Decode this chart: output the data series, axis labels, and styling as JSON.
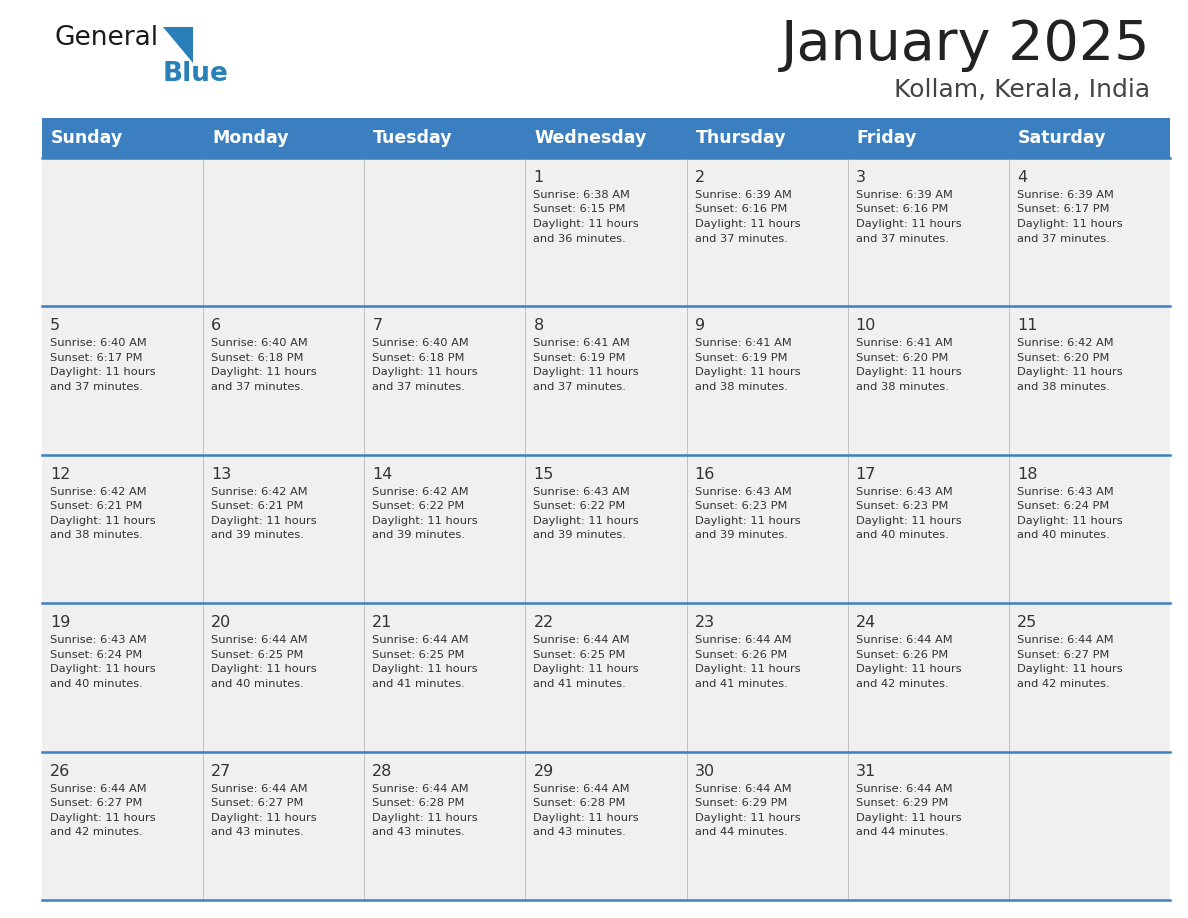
{
  "title": "January 2025",
  "subtitle": "Kollam, Kerala, India",
  "header_bg": "#3c7fc0",
  "header_text_color": "#ffffff",
  "days_of_week": [
    "Sunday",
    "Monday",
    "Tuesday",
    "Wednesday",
    "Thursday",
    "Friday",
    "Saturday"
  ],
  "row_bg": "#f0f0f0",
  "row_line_color": "#3c7fc0",
  "cell_text_color": "#333333",
  "title_color": "#222222",
  "subtitle_color": "#444444",
  "calendar_data": [
    [
      {
        "day": "",
        "sunrise": "",
        "sunset": "",
        "daylight_h": "",
        "daylight_m": ""
      },
      {
        "day": "",
        "sunrise": "",
        "sunset": "",
        "daylight_h": "",
        "daylight_m": ""
      },
      {
        "day": "",
        "sunrise": "",
        "sunset": "",
        "daylight_h": "",
        "daylight_m": ""
      },
      {
        "day": "1",
        "sunrise": "6:38 AM",
        "sunset": "6:15 PM",
        "daylight_h": "11",
        "daylight_m": "36"
      },
      {
        "day": "2",
        "sunrise": "6:39 AM",
        "sunset": "6:16 PM",
        "daylight_h": "11",
        "daylight_m": "37"
      },
      {
        "day": "3",
        "sunrise": "6:39 AM",
        "sunset": "6:16 PM",
        "daylight_h": "11",
        "daylight_m": "37"
      },
      {
        "day": "4",
        "sunrise": "6:39 AM",
        "sunset": "6:17 PM",
        "daylight_h": "11",
        "daylight_m": "37"
      }
    ],
    [
      {
        "day": "5",
        "sunrise": "6:40 AM",
        "sunset": "6:17 PM",
        "daylight_h": "11",
        "daylight_m": "37"
      },
      {
        "day": "6",
        "sunrise": "6:40 AM",
        "sunset": "6:18 PM",
        "daylight_h": "11",
        "daylight_m": "37"
      },
      {
        "day": "7",
        "sunrise": "6:40 AM",
        "sunset": "6:18 PM",
        "daylight_h": "11",
        "daylight_m": "37"
      },
      {
        "day": "8",
        "sunrise": "6:41 AM",
        "sunset": "6:19 PM",
        "daylight_h": "11",
        "daylight_m": "37"
      },
      {
        "day": "9",
        "sunrise": "6:41 AM",
        "sunset": "6:19 PM",
        "daylight_h": "11",
        "daylight_m": "38"
      },
      {
        "day": "10",
        "sunrise": "6:41 AM",
        "sunset": "6:20 PM",
        "daylight_h": "11",
        "daylight_m": "38"
      },
      {
        "day": "11",
        "sunrise": "6:42 AM",
        "sunset": "6:20 PM",
        "daylight_h": "11",
        "daylight_m": "38"
      }
    ],
    [
      {
        "day": "12",
        "sunrise": "6:42 AM",
        "sunset": "6:21 PM",
        "daylight_h": "11",
        "daylight_m": "38"
      },
      {
        "day": "13",
        "sunrise": "6:42 AM",
        "sunset": "6:21 PM",
        "daylight_h": "11",
        "daylight_m": "39"
      },
      {
        "day": "14",
        "sunrise": "6:42 AM",
        "sunset": "6:22 PM",
        "daylight_h": "11",
        "daylight_m": "39"
      },
      {
        "day": "15",
        "sunrise": "6:43 AM",
        "sunset": "6:22 PM",
        "daylight_h": "11",
        "daylight_m": "39"
      },
      {
        "day": "16",
        "sunrise": "6:43 AM",
        "sunset": "6:23 PM",
        "daylight_h": "11",
        "daylight_m": "39"
      },
      {
        "day": "17",
        "sunrise": "6:43 AM",
        "sunset": "6:23 PM",
        "daylight_h": "11",
        "daylight_m": "40"
      },
      {
        "day": "18",
        "sunrise": "6:43 AM",
        "sunset": "6:24 PM",
        "daylight_h": "11",
        "daylight_m": "40"
      }
    ],
    [
      {
        "day": "19",
        "sunrise": "6:43 AM",
        "sunset": "6:24 PM",
        "daylight_h": "11",
        "daylight_m": "40"
      },
      {
        "day": "20",
        "sunrise": "6:44 AM",
        "sunset": "6:25 PM",
        "daylight_h": "11",
        "daylight_m": "40"
      },
      {
        "day": "21",
        "sunrise": "6:44 AM",
        "sunset": "6:25 PM",
        "daylight_h": "11",
        "daylight_m": "41"
      },
      {
        "day": "22",
        "sunrise": "6:44 AM",
        "sunset": "6:25 PM",
        "daylight_h": "11",
        "daylight_m": "41"
      },
      {
        "day": "23",
        "sunrise": "6:44 AM",
        "sunset": "6:26 PM",
        "daylight_h": "11",
        "daylight_m": "41"
      },
      {
        "day": "24",
        "sunrise": "6:44 AM",
        "sunset": "6:26 PM",
        "daylight_h": "11",
        "daylight_m": "42"
      },
      {
        "day": "25",
        "sunrise": "6:44 AM",
        "sunset": "6:27 PM",
        "daylight_h": "11",
        "daylight_m": "42"
      }
    ],
    [
      {
        "day": "26",
        "sunrise": "6:44 AM",
        "sunset": "6:27 PM",
        "daylight_h": "11",
        "daylight_m": "42"
      },
      {
        "day": "27",
        "sunrise": "6:44 AM",
        "sunset": "6:27 PM",
        "daylight_h": "11",
        "daylight_m": "43"
      },
      {
        "day": "28",
        "sunrise": "6:44 AM",
        "sunset": "6:28 PM",
        "daylight_h": "11",
        "daylight_m": "43"
      },
      {
        "day": "29",
        "sunrise": "6:44 AM",
        "sunset": "6:28 PM",
        "daylight_h": "11",
        "daylight_m": "43"
      },
      {
        "day": "30",
        "sunrise": "6:44 AM",
        "sunset": "6:29 PM",
        "daylight_h": "11",
        "daylight_m": "44"
      },
      {
        "day": "31",
        "sunrise": "6:44 AM",
        "sunset": "6:29 PM",
        "daylight_h": "11",
        "daylight_m": "44"
      },
      {
        "day": "",
        "sunrise": "",
        "sunset": "",
        "daylight_h": "",
        "daylight_m": ""
      }
    ]
  ],
  "logo_color_general": "#1a1a1a",
  "logo_color_blue": "#2980b9",
  "logo_triangle_color": "#2980b9",
  "fig_width": 11.88,
  "fig_height": 9.18,
  "fig_dpi": 100
}
